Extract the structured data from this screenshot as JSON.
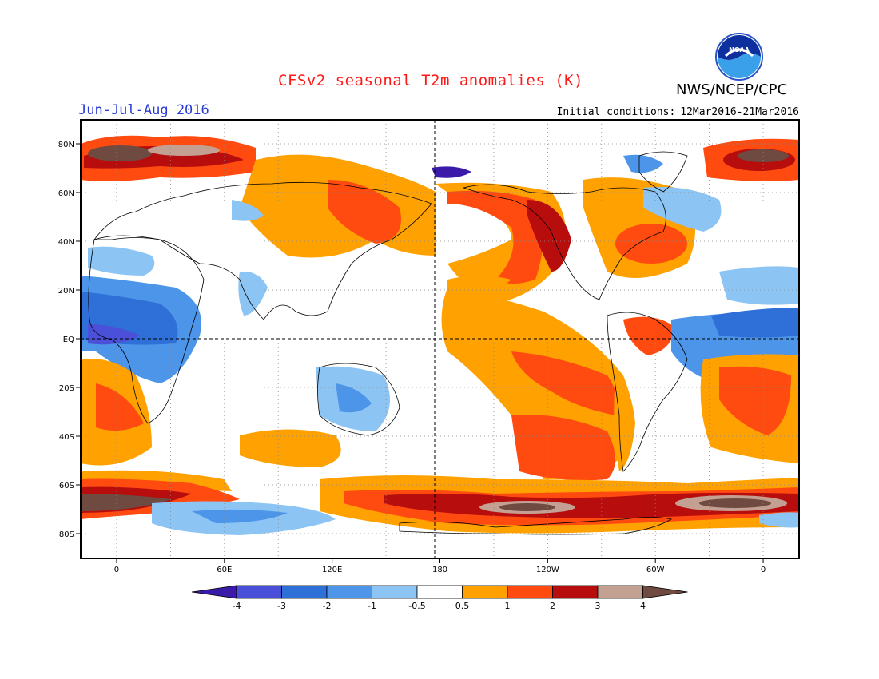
{
  "header": {
    "title": "CFSv2 seasonal T2m anomalies (K)",
    "agency": "NWS/NCEP/CPC",
    "period": "Jun-Jul-Aug 2016",
    "initial_conditions_label": "Initial conditions:",
    "initial_conditions_value": "12Mar2016-21Mar2016",
    "logo_text": "NOAA"
  },
  "map": {
    "lat_labels": [
      "80N",
      "60N",
      "40N",
      "20N",
      "EQ",
      "20S",
      "40S",
      "60S",
      "80S"
    ],
    "lon_labels": [
      "0",
      "60E",
      "120E",
      "180",
      "120W",
      "60W",
      "0"
    ],
    "colors": {
      "strong_cold": "#3a1aa8",
      "cold_3": "#4b50d8",
      "cold_2": "#2f6fd8",
      "cold_1": "#4c95e8",
      "cold_05": "#8cc4f4",
      "neutral": "#ffffff",
      "warm_05": "#ffa100",
      "warm_1": "#ff4a10",
      "warm_2": "#b80d0d",
      "warm_3": "#c4a092",
      "warm_4": "#6e4a40"
    }
  },
  "colorbar": {
    "labels": [
      "-4",
      "-3",
      "-2",
      "-1",
      "-0.5",
      "0.5",
      "1",
      "2",
      "3",
      "4"
    ],
    "colors": [
      "#3a1aa8",
      "#4b50d8",
      "#2f6fd8",
      "#4c95e8",
      "#8cc4f4",
      "#ffffff",
      "#ffa100",
      "#ff4a10",
      "#b80d0d",
      "#c4a092",
      "#6e4a40"
    ]
  }
}
